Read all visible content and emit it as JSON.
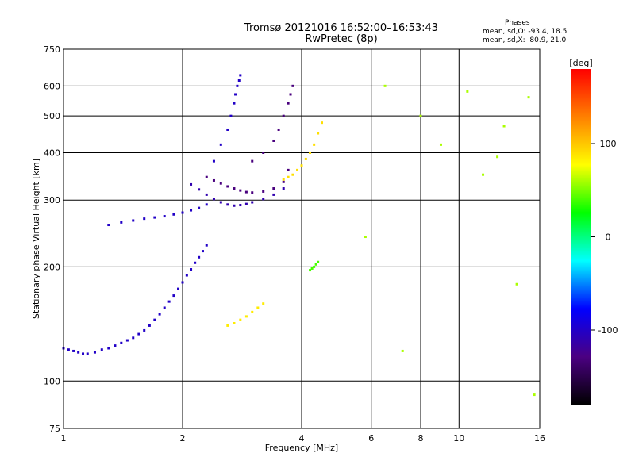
{
  "chart_data": {
    "type": "scatter",
    "title": "Tromsø 20121016 16:52:00–16:53:43",
    "subtitle": "RwPretec (8p)",
    "xlabel": "Frequency [MHz]",
    "ylabel": "Stationary phase Virtual Height [km]",
    "xscale": "log",
    "yscale": "log",
    "xlim": [
      1,
      16
    ],
    "ylim": [
      75,
      750
    ],
    "x_ticks": [
      1,
      2,
      4,
      6,
      8,
      10,
      16
    ],
    "x_tick_labels": [
      "1",
      "2",
      "4",
      "6",
      "8",
      "10",
      "16"
    ],
    "y_ticks": [
      75,
      100,
      200,
      300,
      400,
      500,
      600,
      750
    ],
    "y_tick_labels": [
      "75",
      "100",
      "200",
      "300",
      "400",
      "500",
      "600",
      "750"
    ],
    "grid": true,
    "colorbar": {
      "title": "[deg]",
      "range": [
        -180,
        180
      ],
      "ticks": [
        100,
        0,
        -100
      ],
      "tick_labels": [
        "100",
        "0",
        "-100"
      ],
      "colors": [
        "#000000",
        "#4b0082",
        "#0000ff",
        "#00ffff",
        "#00ff00",
        "#ffff00",
        "#ff8000",
        "#ff0000"
      ]
    },
    "annotation": {
      "heading": "Phases",
      "line1": "mean, sd,O: -93.4, 18.5",
      "line2": "mean, sd,X:  80.9, 21.0"
    },
    "series": [
      {
        "x": [
          1.0,
          1.03,
          1.06,
          1.09,
          1.12,
          1.15,
          1.2,
          1.25,
          1.3,
          1.35,
          1.4,
          1.45,
          1.5,
          1.55,
          1.6,
          1.65,
          1.7,
          1.75,
          1.8,
          1.85,
          1.9,
          1.95,
          2.0,
          2.05,
          2.1,
          2.15,
          2.2,
          2.25,
          2.3
        ],
        "y": [
          122,
          121,
          120,
          119,
          118,
          118,
          119,
          121,
          122,
          124,
          126,
          128,
          130,
          133,
          136,
          140,
          145,
          150,
          156,
          162,
          168,
          175,
          182,
          190,
          197,
          205,
          212,
          220,
          228
        ],
        "phase": -100
      },
      {
        "x": [
          1.3,
          1.4,
          1.5,
          1.6,
          1.7,
          1.8,
          1.9,
          2.0,
          2.1,
          2.2,
          2.3
        ],
        "y": [
          258,
          262,
          265,
          268,
          270,
          272,
          275,
          278,
          282,
          286,
          292
        ],
        "phase": -100
      },
      {
        "x": [
          2.1,
          2.2,
          2.3,
          2.4,
          2.5,
          2.6,
          2.7,
          2.8,
          2.9,
          3.0,
          3.2,
          3.4,
          3.6
        ],
        "y": [
          330,
          320,
          310,
          302,
          296,
          292,
          290,
          291,
          293,
          296,
          302,
          310,
          322
        ],
        "phase": -110
      },
      {
        "x": [
          2.3,
          2.4,
          2.5,
          2.6,
          2.7,
          2.8,
          2.9,
          3.0,
          3.2,
          3.4,
          3.6,
          3.7
        ],
        "y": [
          345,
          338,
          332,
          326,
          322,
          318,
          315,
          314,
          316,
          322,
          335,
          360
        ],
        "phase": -130
      },
      {
        "x": [
          2.4,
          2.5,
          2.6,
          2.65,
          2.7,
          2.72,
          2.75,
          2.78,
          2.8
        ],
        "y": [
          380,
          420,
          460,
          500,
          540,
          570,
          600,
          620,
          640
        ],
        "phase": -100
      },
      {
        "x": [
          3.0,
          3.2,
          3.4,
          3.5,
          3.6,
          3.7,
          3.75,
          3.8
        ],
        "y": [
          380,
          400,
          430,
          460,
          500,
          540,
          570,
          600
        ],
        "phase": -130
      },
      {
        "x": [
          3.6,
          3.7,
          3.8,
          3.9,
          4.0,
          4.1,
          4.2,
          4.3,
          4.4,
          4.5
        ],
        "y": [
          340,
          345,
          350,
          360,
          370,
          385,
          400,
          420,
          450,
          480
        ],
        "phase": 90
      },
      {
        "x": [
          2.6,
          2.7,
          2.8,
          2.9,
          3.0,
          3.1,
          3.2
        ],
        "y": [
          140,
          142,
          145,
          148,
          152,
          156,
          160
        ],
        "phase": 85
      },
      {
        "x": [
          4.2,
          4.25,
          4.3,
          4.35,
          4.4
        ],
        "y": [
          196,
          198,
          200,
          203,
          206
        ],
        "phase": 40
      },
      {
        "x": [
          5.8,
          6.5,
          7.2,
          8.0,
          9.0,
          10.5,
          11.5,
          12.5,
          13.0,
          14.0,
          15.0,
          15.5
        ],
        "y": [
          240,
          600,
          120,
          500,
          420,
          580,
          350,
          390,
          470,
          180,
          560,
          92
        ],
        "phase": 60
      }
    ]
  }
}
